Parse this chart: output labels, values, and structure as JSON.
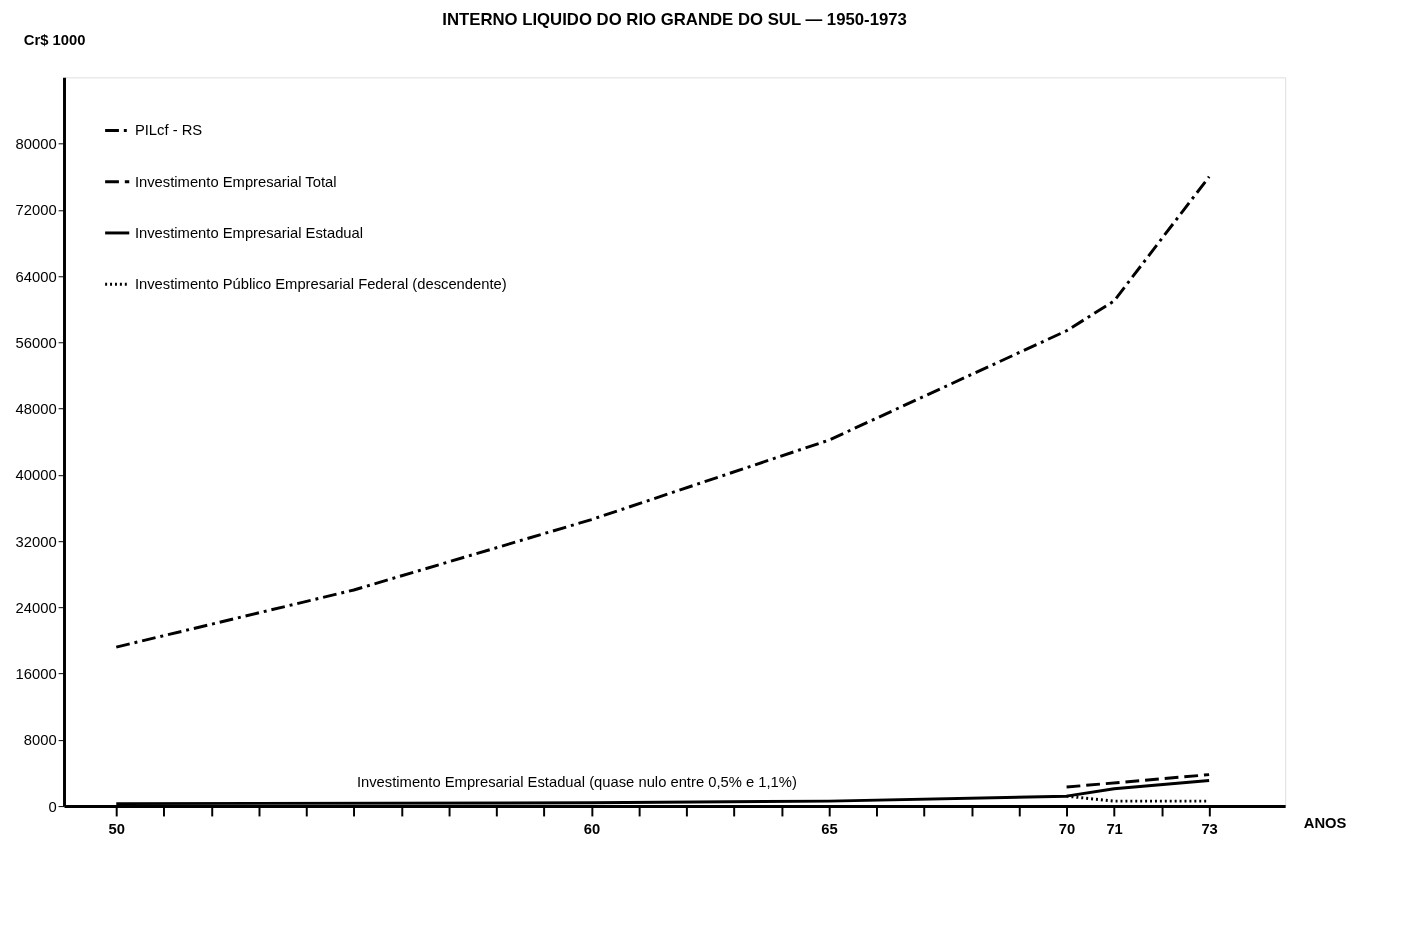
{
  "chart_data": {
    "type": "line",
    "title": "INTERNO LIQUIDO DO RIO GRANDE DO SUL — 1950-1973",
    "xlabel": "ANOS",
    "ylabel": "Cr$ 1000",
    "series": [
      {
        "name": "PILcf - RS",
        "color": "#000000",
        "line_style": "dashdot",
        "x": [
          50,
          55,
          60,
          65,
          70,
          71,
          73
        ],
        "values": [
          19200,
          26100,
          34600,
          44200,
          57400,
          61000,
          76000
        ]
      },
      {
        "name": "Investimento Empresarial Total",
        "color": "#000000",
        "line_style": "dashed",
        "x": [
          70,
          73
        ],
        "values": [
          2300,
          3800
        ]
      },
      {
        "name": "Investimento Empresarial Estadual",
        "color": "#000000",
        "line_style": "solid",
        "x": [
          50,
          60,
          65,
          70,
          71,
          73
        ],
        "values": [
          300,
          400,
          600,
          1200,
          2100,
          3100
        ]
      },
      {
        "name": "Investimento Público Empresarial Federal (descendente)",
        "color": "#000000",
        "line_style": "dotted",
        "x": [
          70,
          71,
          73
        ],
        "values": [
          1200,
          600,
          600
        ]
      }
    ],
    "annotations": [
      "Investimento Empresarial Estadual (quase nulo entre 0,5% e 1,1%)"
    ],
    "xlim": [
      48.9,
      74.6
    ],
    "xticks": [
      50,
      {
        "value": 51,
        "label": null
      },
      {
        "value": 52,
        "label": null
      },
      {
        "value": 53,
        "label": null
      },
      {
        "value": 54,
        "label": null
      },
      {
        "value": 55,
        "label": null
      },
      {
        "value": 56,
        "label": null
      },
      {
        "value": 57,
        "label": null
      },
      {
        "value": 58,
        "label": null
      },
      {
        "value": 59,
        "label": null
      },
      60,
      {
        "value": 61,
        "label": null
      },
      {
        "value": 62,
        "label": null
      },
      {
        "value": 63,
        "label": null
      },
      {
        "value": 64,
        "label": null
      },
      65,
      {
        "value": 66,
        "label": null
      },
      {
        "value": 67,
        "label": null
      },
      {
        "value": 68,
        "label": null
      },
      {
        "value": 69,
        "label": null
      },
      70,
      71,
      {
        "value": 72,
        "label": null
      },
      73
    ],
    "ylim": [
      0,
      88000
    ],
    "yticks": [
      0,
      8000,
      16000,
      24000,
      32000,
      40000,
      48000,
      56000,
      64000,
      72000,
      80000
    ],
    "grid": false,
    "legend": "top left",
    "marker": "none"
  }
}
